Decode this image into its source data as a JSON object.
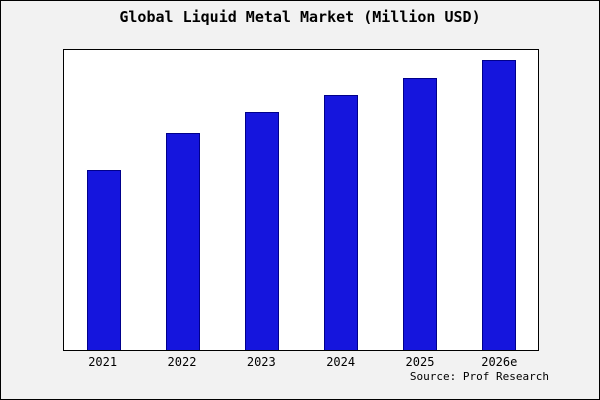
{
  "chart_data": {
    "type": "bar",
    "title": "Global Liquid Metal Market (Million USD)",
    "xlabel": "",
    "ylabel": "",
    "categories": [
      "2021",
      "2022",
      "2023",
      "2024",
      "2025",
      "2026e"
    ],
    "values": [
      62,
      75,
      82,
      88,
      94,
      100
    ],
    "ylim": [
      0,
      103.5
    ],
    "grid": false,
    "legend": false,
    "bar_color": "#1515dd",
    "bar_edge_color": "#00008b",
    "plot_background": "#ffffff",
    "figure_background": "#f2f2f2",
    "source": "Source: Prof Research"
  }
}
